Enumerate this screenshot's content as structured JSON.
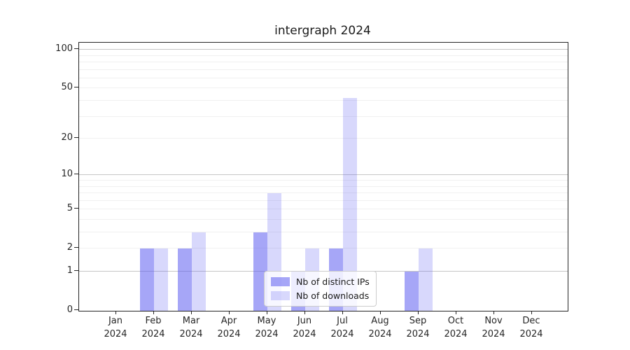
{
  "chart_data": {
    "type": "bar",
    "title": "intergraph 2024",
    "year_label": "2024",
    "months": [
      "Jan",
      "Feb",
      "Mar",
      "Apr",
      "May",
      "Jun",
      "Jul",
      "Aug",
      "Sep",
      "Oct",
      "Nov",
      "Dec"
    ],
    "series": [
      {
        "name": "Nb of distinct IPs",
        "color": "rgba(85,85,240,0.52)",
        "values": [
          0,
          2,
          2,
          0,
          3,
          1,
          2,
          0,
          1,
          0,
          0,
          0
        ]
      },
      {
        "name": "Nb of downloads",
        "color": "rgba(85,85,240,0.23)",
        "values": [
          0,
          2,
          3,
          0,
          7,
          2,
          42,
          0,
          2,
          0,
          0,
          0
        ]
      }
    ],
    "y_axis": {
      "scale": "log10(1+x)",
      "tick_values": [
        0,
        1,
        2,
        5,
        10,
        20,
        50,
        100
      ],
      "major_grid_values": [
        1,
        10,
        100
      ],
      "minor_grid_values": [
        2,
        3,
        4,
        5,
        6,
        7,
        8,
        9,
        20,
        30,
        40,
        50,
        60,
        70,
        80,
        90
      ],
      "ylim": [
        0,
        113
      ]
    },
    "legend": {
      "position": "lower center",
      "entries": [
        "Nb of distinct IPs",
        "Nb of downloads"
      ]
    },
    "grid": "on"
  },
  "colors": {
    "bar_distinct_ips": "rgba(85,85,240,0.52)",
    "bar_downloads": "rgba(85,85,240,0.23)",
    "grid_minor": "#f0f0f0",
    "grid_major": "#c6c6c6",
    "axis": "#262626",
    "background": "#ffffff"
  }
}
